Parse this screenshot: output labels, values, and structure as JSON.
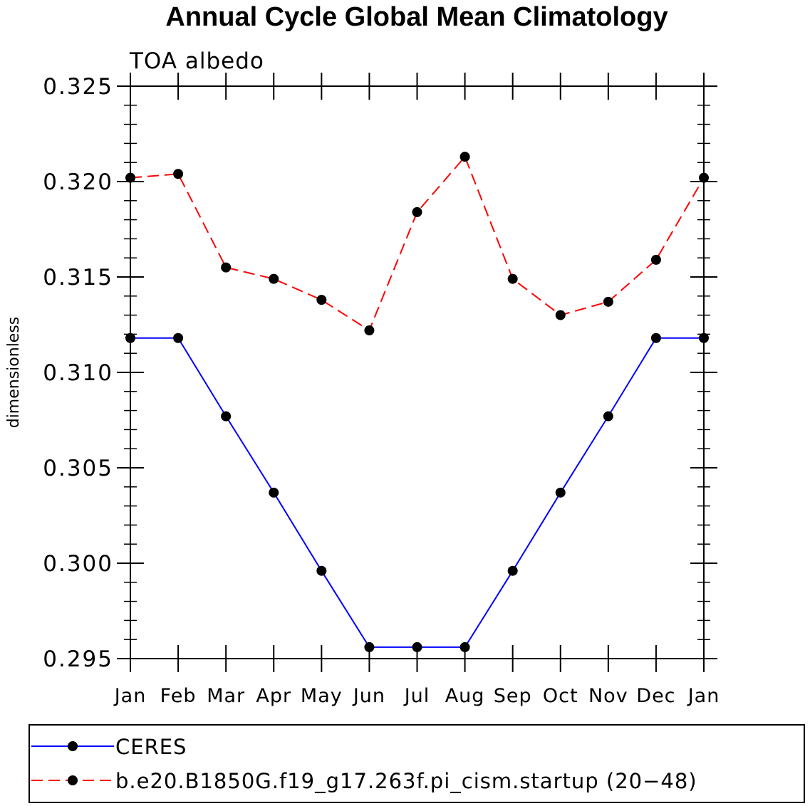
{
  "chart_data": {
    "type": "line",
    "title": "Annual Cycle Global Mean Climatology",
    "subtitle": "TOA albedo",
    "ylabel": "dimensionless",
    "xlabel": "",
    "categories": [
      "Jan",
      "Feb",
      "Mar",
      "Apr",
      "May",
      "Jun",
      "Jul",
      "Aug",
      "Sep",
      "Oct",
      "Nov",
      "Dec",
      "Jan"
    ],
    "ylim": [
      0.295,
      0.325
    ],
    "yticks": [
      "0.295",
      "0.300",
      "0.305",
      "0.310",
      "0.315",
      "0.320",
      "0.325"
    ],
    "series": [
      {
        "name": "CERES",
        "color": "#0000ff",
        "line_style": "solid",
        "marker": "filled-circle",
        "values": [
          0.3118,
          0.3118,
          0.3077,
          0.3037,
          0.2996,
          0.2956,
          0.2956,
          0.2956,
          0.2996,
          0.3037,
          0.3077,
          0.3118,
          0.3118
        ]
      },
      {
        "name": "b.e20.B1850G.f19_g17.263f.pi_cism.startup (20−48)",
        "color": "#ff0000",
        "line_style": "dashed",
        "marker": "filled-circle",
        "values": [
          0.3202,
          0.3204,
          0.3155,
          0.3149,
          0.3138,
          0.3122,
          0.3184,
          0.3213,
          0.3149,
          0.313,
          0.3137,
          0.3159,
          0.3202
        ]
      }
    ],
    "grid": false,
    "legend_position": "bottom"
  }
}
